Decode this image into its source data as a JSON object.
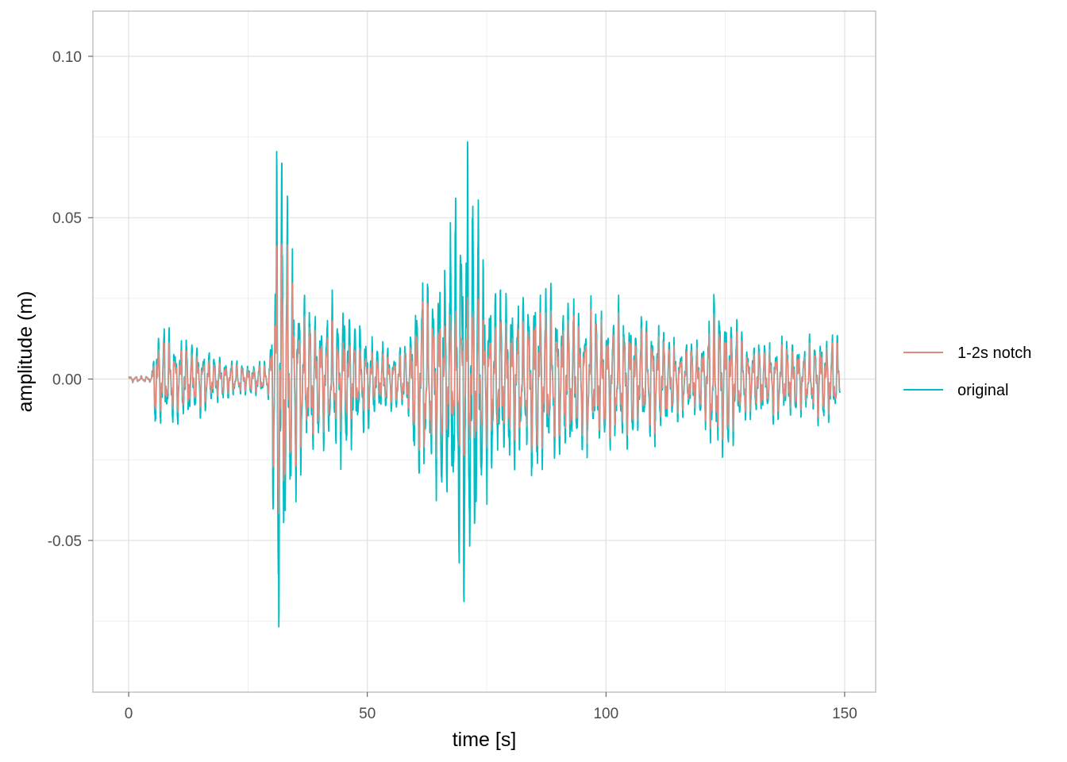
{
  "chart_data": {
    "type": "line",
    "title": "",
    "xlabel": "time [s]",
    "ylabel": "amplitude (m)",
    "xlim": [
      -7.5,
      156.5
    ],
    "ylim": [
      -0.097,
      0.114
    ],
    "x_ticks": [
      0,
      50,
      100,
      150
    ],
    "x_tick_labels": [
      "0",
      "50",
      "100",
      "150"
    ],
    "y_ticks": [
      -0.05,
      0.0,
      0.05,
      0.1
    ],
    "y_tick_labels": [
      "-0.05",
      "0.00",
      "0.05",
      "0.10"
    ],
    "grid": true,
    "legend_position": "right",
    "series": [
      {
        "name": "1-2s notch",
        "color": "#E08A7E",
        "envelope": {
          "t": [
            0,
            4.8,
            5.5,
            7,
            9,
            11,
            14,
            18,
            22,
            26,
            29.5,
            30.5,
            31.5,
            32.5,
            34,
            35.5,
            37,
            40,
            45,
            48,
            52,
            56,
            58.5,
            60,
            61.5,
            62.5,
            64,
            67,
            70,
            71,
            73,
            75,
            78,
            82,
            86,
            88,
            91,
            95,
            99,
            103,
            107,
            111,
            115,
            118,
            121,
            122,
            124,
            126,
            128,
            130,
            134,
            138,
            142,
            146,
            149
          ],
          "amp": [
            0.001,
            0.001,
            0.013,
            0.012,
            0.011,
            0.01,
            0.009,
            0.006,
            0.005,
            0.004,
            0.005,
            0.035,
            0.055,
            0.045,
            0.035,
            0.025,
            0.02,
            0.018,
            0.015,
            0.012,
            0.008,
            0.008,
            0.01,
            0.02,
            0.03,
            0.025,
            0.025,
            0.02,
            0.025,
            0.028,
            0.025,
            0.02,
            0.02,
            0.02,
            0.025,
            0.022,
            0.02,
            0.02,
            0.02,
            0.018,
            0.017,
            0.015,
            0.01,
            0.01,
            0.012,
            0.02,
            0.02,
            0.018,
            0.015,
            0.01,
            0.01,
            0.01,
            0.01,
            0.012,
            0.012
          ]
        }
      },
      {
        "name": "original",
        "color": "#00BFC4",
        "envelope": {
          "t": [
            0,
            4.8,
            5.5,
            7,
            9,
            11,
            14,
            18,
            22,
            26,
            29.5,
            30.5,
            31.5,
            32.5,
            34,
            35.5,
            37,
            40,
            45,
            48,
            52,
            56,
            58.5,
            60,
            61.5,
            62.5,
            64,
            67,
            70,
            71,
            73,
            75,
            78,
            82,
            86,
            88,
            91,
            95,
            99,
            103,
            107,
            111,
            115,
            118,
            121,
            122,
            124,
            126,
            128,
            130,
            134,
            138,
            142,
            146,
            149
          ],
          "amp": [
            0.001,
            0.001,
            0.017,
            0.016,
            0.015,
            0.013,
            0.012,
            0.008,
            0.006,
            0.005,
            0.006,
            0.05,
            0.098,
            0.06,
            0.045,
            0.035,
            0.025,
            0.022,
            0.026,
            0.02,
            0.012,
            0.01,
            0.012,
            0.028,
            0.036,
            0.03,
            0.034,
            0.045,
            0.07,
            0.078,
            0.055,
            0.035,
            0.03,
            0.028,
            0.03,
            0.03,
            0.025,
            0.024,
            0.022,
            0.022,
            0.02,
            0.018,
            0.012,
            0.012,
            0.014,
            0.025,
            0.025,
            0.022,
            0.018,
            0.012,
            0.012,
            0.012,
            0.012,
            0.014,
            0.014
          ]
        }
      }
    ]
  }
}
